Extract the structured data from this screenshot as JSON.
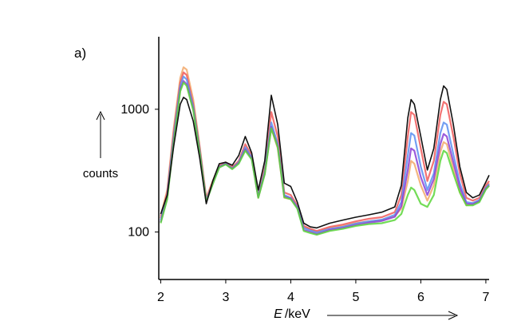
{
  "panel_label": "a)",
  "chart_data": {
    "type": "line",
    "title": "",
    "xlabel_var": "E",
    "xlabel_unit": "keV",
    "ylabel": "counts",
    "x_ticks": [
      2,
      3,
      4,
      5,
      6,
      7
    ],
    "y_ticks": [
      100,
      1000
    ],
    "xlim": [
      1.97,
      7.05
    ],
    "ylim": [
      41,
      3900
    ],
    "y_scale": "log",
    "grid": false,
    "legend": "none",
    "series": [
      {
        "color": "#f2a96b",
        "x": [
          2.0,
          2.1,
          2.2,
          2.3,
          2.35,
          2.4,
          2.5,
          2.6,
          2.7,
          2.8,
          2.9,
          3.0,
          3.1,
          3.2,
          3.3,
          3.4,
          3.5,
          3.6,
          3.7,
          3.8,
          3.9,
          4.0,
          4.1,
          4.2,
          4.3,
          4.4,
          4.6,
          4.8,
          5.0,
          5.2,
          5.4,
          5.6,
          5.7,
          5.8,
          5.85,
          5.9,
          6.0,
          6.1,
          6.2,
          6.3,
          6.35,
          6.4,
          6.5,
          6.6,
          6.7,
          6.8,
          6.9,
          7.0,
          7.05
        ],
        "y": [
          135,
          220,
          700,
          1800,
          2200,
          2100,
          1200,
          500,
          190,
          260,
          350,
          370,
          340,
          370,
          480,
          400,
          190,
          300,
          700,
          480,
          190,
          185,
          160,
          110,
          105,
          100,
          108,
          112,
          118,
          122,
          125,
          135,
          155,
          260,
          380,
          360,
          240,
          180,
          240,
          450,
          540,
          520,
          330,
          210,
          165,
          170,
          180,
          230,
          250
        ]
      },
      {
        "color": "#f05a5a",
        "x": [
          2.0,
          2.1,
          2.2,
          2.3,
          2.35,
          2.4,
          2.5,
          2.6,
          2.7,
          2.8,
          2.9,
          3.0,
          3.1,
          3.2,
          3.3,
          3.4,
          3.5,
          3.6,
          3.7,
          3.8,
          3.9,
          4.0,
          4.1,
          4.2,
          4.3,
          4.4,
          4.6,
          4.8,
          5.0,
          5.2,
          5.4,
          5.6,
          5.7,
          5.8,
          5.85,
          5.9,
          6.0,
          6.1,
          6.2,
          6.3,
          6.35,
          6.4,
          6.5,
          6.6,
          6.7,
          6.8,
          6.9,
          7.0,
          7.05
        ],
        "y": [
          130,
          210,
          650,
          1650,
          2000,
          1900,
          1100,
          480,
          185,
          255,
          345,
          365,
          335,
          380,
          520,
          420,
          200,
          330,
          950,
          600,
          210,
          200,
          165,
          112,
          106,
          102,
          110,
          115,
          122,
          128,
          132,
          145,
          200,
          600,
          950,
          900,
          480,
          260,
          380,
          900,
          1150,
          1100,
          600,
          300,
          190,
          180,
          190,
          240,
          260
        ]
      },
      {
        "color": "#5a8ef0",
        "x": [
          2.0,
          2.1,
          2.2,
          2.3,
          2.35,
          2.4,
          2.5,
          2.6,
          2.7,
          2.8,
          2.9,
          3.0,
          3.1,
          3.2,
          3.3,
          3.4,
          3.5,
          3.6,
          3.7,
          3.8,
          3.9,
          4.0,
          4.1,
          4.2,
          4.3,
          4.4,
          4.6,
          4.8,
          5.0,
          5.2,
          5.4,
          5.6,
          5.7,
          5.8,
          5.85,
          5.9,
          6.0,
          6.1,
          6.2,
          6.3,
          6.35,
          6.4,
          6.5,
          6.6,
          6.7,
          6.8,
          6.9,
          7.0,
          7.05
        ],
        "y": [
          125,
          200,
          600,
          1550,
          1850,
          1750,
          1050,
          460,
          180,
          250,
          340,
          360,
          330,
          370,
          490,
          405,
          195,
          310,
          780,
          520,
          200,
          190,
          160,
          108,
          103,
          99,
          106,
          110,
          117,
          122,
          126,
          138,
          175,
          420,
          640,
          610,
          340,
          220,
          300,
          640,
          780,
          750,
          430,
          250,
          175,
          172,
          182,
          230,
          245
        ]
      },
      {
        "color": "#8a3fd6",
        "x": [
          2.0,
          2.1,
          2.2,
          2.3,
          2.35,
          2.4,
          2.5,
          2.6,
          2.7,
          2.8,
          2.9,
          3.0,
          3.1,
          3.2,
          3.3,
          3.4,
          3.5,
          3.6,
          3.7,
          3.8,
          3.9,
          4.0,
          4.1,
          4.2,
          4.3,
          4.4,
          4.6,
          4.8,
          5.0,
          5.2,
          5.4,
          5.6,
          5.7,
          5.8,
          5.85,
          5.9,
          6.0,
          6.1,
          6.2,
          6.3,
          6.35,
          6.4,
          6.5,
          6.6,
          6.7,
          6.8,
          6.9,
          7.0,
          7.05
        ],
        "y": [
          120,
          190,
          560,
          1450,
          1700,
          1600,
          1000,
          450,
          178,
          248,
          338,
          358,
          328,
          365,
          470,
          395,
          192,
          300,
          720,
          500,
          195,
          188,
          158,
          104,
          100,
          96,
          104,
          108,
          114,
          119,
          123,
          133,
          162,
          320,
          480,
          460,
          280,
          200,
          270,
          520,
          630,
          600,
          370,
          230,
          170,
          168,
          178,
          225,
          240
        ]
      },
      {
        "color": "#5ad63a",
        "x": [
          2.0,
          2.1,
          2.2,
          2.3,
          2.35,
          2.4,
          2.5,
          2.6,
          2.7,
          2.8,
          2.9,
          3.0,
          3.1,
          3.2,
          3.3,
          3.4,
          3.5,
          3.6,
          3.7,
          3.8,
          3.9,
          4.0,
          4.1,
          4.2,
          4.3,
          4.4,
          4.6,
          4.8,
          5.0,
          5.2,
          5.4,
          5.6,
          5.7,
          5.8,
          5.85,
          5.9,
          6.0,
          6.1,
          6.2,
          6.3,
          6.35,
          6.4,
          6.5,
          6.6,
          6.7,
          6.8,
          6.9,
          7.0,
          7.05
        ],
        "y": [
          118,
          185,
          540,
          1400,
          1650,
          1550,
          980,
          440,
          176,
          245,
          335,
          355,
          325,
          360,
          460,
          390,
          190,
          295,
          700,
          490,
          192,
          185,
          155,
          102,
          98,
          95,
          102,
          106,
          112,
          116,
          118,
          125,
          140,
          200,
          230,
          220,
          170,
          160,
          200,
          380,
          460,
          440,
          300,
          210,
          165,
          165,
          175,
          222,
          238
        ]
      },
      {
        "color": "#111111",
        "x": [
          2.0,
          2.1,
          2.2,
          2.3,
          2.35,
          2.4,
          2.5,
          2.6,
          2.7,
          2.8,
          2.9,
          3.0,
          3.1,
          3.2,
          3.3,
          3.4,
          3.5,
          3.6,
          3.7,
          3.8,
          3.9,
          4.0,
          4.1,
          4.2,
          4.3,
          4.4,
          4.6,
          4.8,
          5.0,
          5.2,
          5.4,
          5.6,
          5.7,
          5.8,
          5.85,
          5.9,
          6.0,
          6.1,
          6.2,
          6.3,
          6.35,
          6.4,
          6.5,
          6.6,
          6.7,
          6.8,
          6.9,
          7.0,
          7.05
        ],
        "y": [
          140,
          200,
          500,
          1100,
          1250,
          1200,
          800,
          400,
          170,
          260,
          360,
          370,
          350,
          420,
          600,
          440,
          220,
          380,
          1300,
          750,
          250,
          235,
          175,
          118,
          110,
          108,
          118,
          125,
          132,
          138,
          145,
          160,
          240,
          850,
          1200,
          1100,
          600,
          320,
          480,
          1200,
          1550,
          1450,
          750,
          340,
          210,
          190,
          200,
          255,
          290
        ]
      }
    ]
  }
}
